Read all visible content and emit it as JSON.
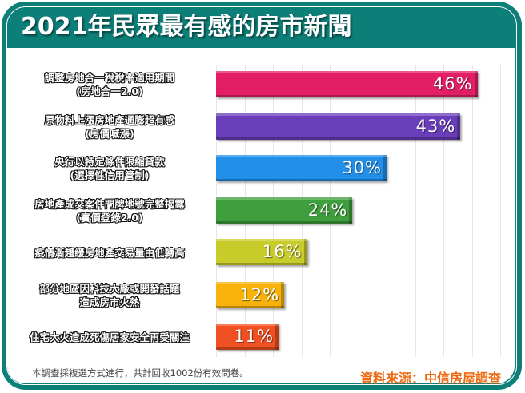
{
  "title": "2021年民眾最有感的房市新聞",
  "colors": {
    "frame": "#0d7f79",
    "source_text": "#ee6a12"
  },
  "rows": [
    {
      "line1": "調整房地合一稅稅率適用期間",
      "line2": "(房地合一2.0)",
      "value_label": "46%",
      "value": 46,
      "color": "#e21f65"
    },
    {
      "line1": "原物料上漲房地產通膨超有感",
      "line2": "(房價喊漲)",
      "value_label": "43%",
      "value": 43,
      "color": "#6a3dbb"
    },
    {
      "line1": "央行以特定條件限縮貸款",
      "line2": "(選擇性信用管制)",
      "value_label": "30%",
      "value": 30,
      "color": "#2290e8"
    },
    {
      "line1": "房地產成交案件門牌地號完整揭露",
      "line2": "(實價登錄2.0)",
      "value_label": "24%",
      "value": 24,
      "color": "#3f9e3d"
    },
    {
      "line1": "疫情漸趨緩房地產交易量由低轉高",
      "line2": "",
      "value_label": "16%",
      "value": 16,
      "color": "#c8cc2a"
    },
    {
      "line1": "部分地區因科技大廠或開發話題",
      "line2": "造成房市火熱",
      "value_label": "12%",
      "value": 12,
      "color": "#f7b20c"
    },
    {
      "line1": "住宅大火造成死傷居家安全再受關注",
      "line2": "",
      "value_label": "11%",
      "value": 11,
      "color": "#f05022"
    }
  ],
  "footnote": "本調查採複選方式進行，共計回收1002份有效問卷。",
  "source": "資料來源：中信房屋調查",
  "chart_data": {
    "type": "bar",
    "orientation": "horizontal",
    "title": "2021年民眾最有感的房市新聞",
    "categories": [
      "調整房地合一稅稅率適用期間(房地合一2.0)",
      "原物料上漲房地產通膨超有感(房價喊漲)",
      "央行以特定條件限縮貸款(選擇性信用管制)",
      "房地產成交案件門牌地號完整揭露(實價登錄2.0)",
      "疫情漸趨緩房地產交易量由低轉高",
      "部分地區因科技大廠或開發話題造成房市火熱",
      "住宅大火造成死傷居家安全再受關注"
    ],
    "values": [
      46,
      43,
      30,
      24,
      16,
      12,
      11
    ],
    "unit": "%",
    "xlim": [
      0,
      50
    ],
    "grid": true,
    "grid_step": 5,
    "xlabel": "",
    "ylabel": "",
    "legend": null,
    "annotations": [
      "本調查採複選方式進行，共計回收1002份有效問卷。",
      "資料來源：中信房屋調查"
    ]
  }
}
